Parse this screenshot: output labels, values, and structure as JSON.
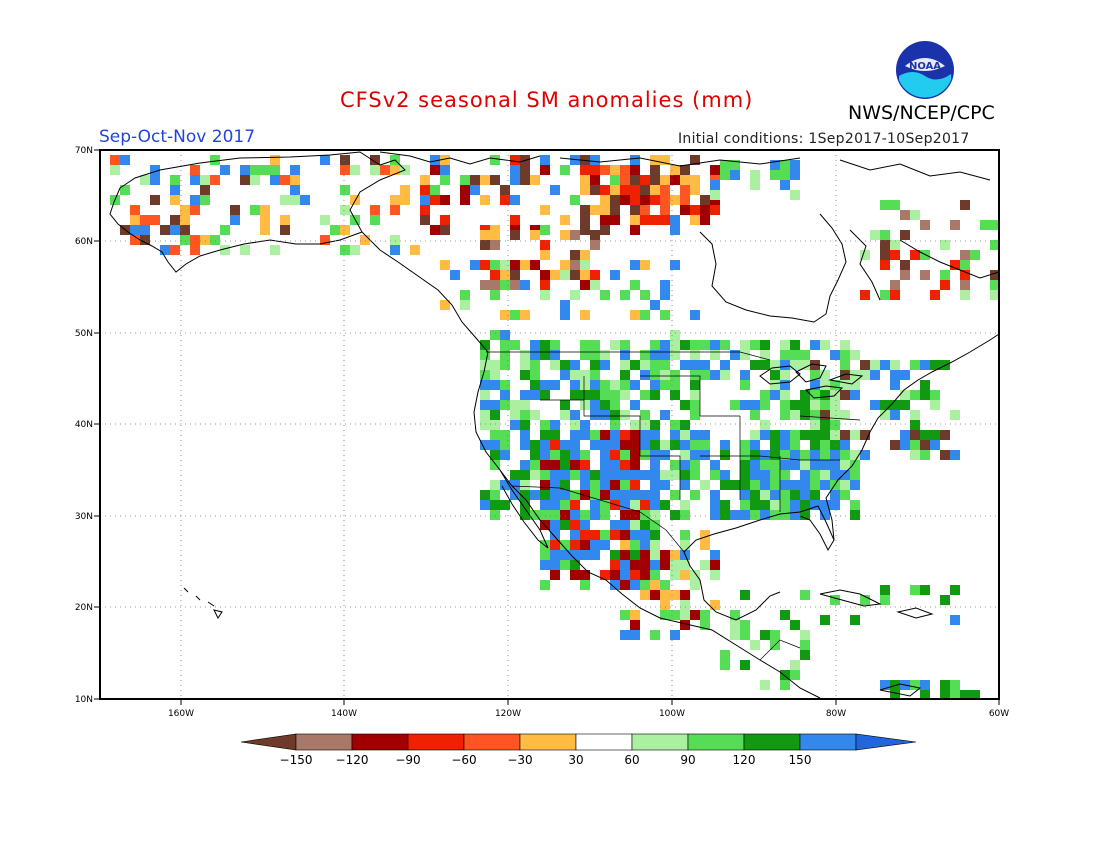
{
  "title": "CFSv2 seasonal SM anomalies (mm)",
  "season": "Sep-Oct-Nov 2017",
  "initial_conditions": "Initial conditions: 1Sep2017-10Sep2017",
  "agency": "NWS/NCEP/CPC",
  "logo_text": "NOAA",
  "map": {
    "lon_range": [
      -172,
      -60
    ],
    "lat_range": [
      10,
      70
    ],
    "lon_ticks": [
      "160W",
      "140W",
      "120W",
      "100W",
      "80W",
      "60W"
    ],
    "lat_ticks": [
      "70N",
      "60N",
      "50N",
      "40N",
      "30N",
      "20N",
      "10N"
    ],
    "grid": "dotted"
  },
  "legend": {
    "labels": [
      "-150",
      "-120",
      "-90",
      "-60",
      "-30",
      "30",
      "60",
      "90",
      "120",
      "150"
    ],
    "colors": [
      "#6e3a2a",
      "#a87868",
      "#a00000",
      "#ee2200",
      "#ff5522",
      "#ffbb44",
      "#ffffff",
      "#aaf0a0",
      "#55dd55",
      "#119911",
      "#3388ee",
      "#2266dd"
    ]
  }
}
